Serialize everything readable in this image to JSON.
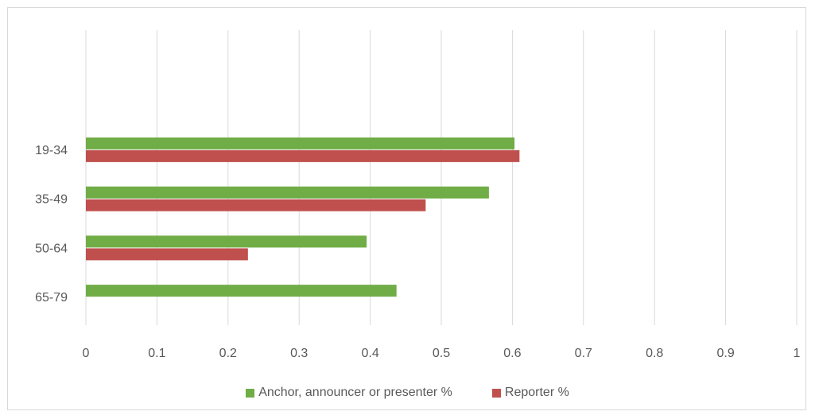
{
  "chart_data": {
    "type": "bar",
    "orientation": "horizontal",
    "categories": [
      "19-34",
      "35-49",
      "50-64",
      "65-79"
    ],
    "series": [
      {
        "name": "Anchor, announcer or presenter %",
        "color": "#70ad47",
        "values": [
          0.603,
          0.567,
          0.395,
          0.437
        ]
      },
      {
        "name": "Reporter %",
        "color": "#c0504d",
        "values": [
          0.61,
          0.478,
          0.228,
          null
        ]
      }
    ],
    "xlim": [
      0,
      1
    ],
    "xticks": [
      "0",
      "0.1",
      "0.2",
      "0.3",
      "0.4",
      "0.5",
      "0.6",
      "0.7",
      "0.8",
      "0.9",
      "1"
    ],
    "grid": "vertical",
    "legend": "bottom",
    "title": "",
    "xlabel": "",
    "ylabel": ""
  }
}
